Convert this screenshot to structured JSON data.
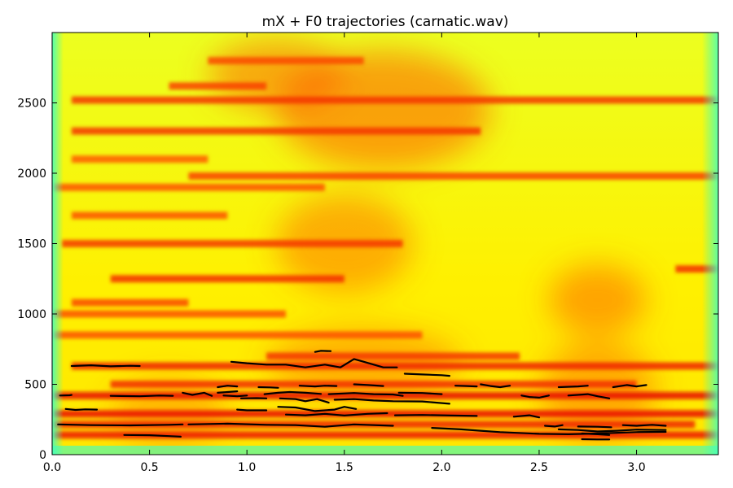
{
  "chart_data": {
    "type": "heatmap",
    "title": "mX + F0 trajectories (carnatic.wav)",
    "xlabel": "",
    "ylabel": "",
    "xlim": [
      0.0,
      3.42
    ],
    "ylim": [
      0,
      3000
    ],
    "x_ticks": [
      "0.0",
      "0.5",
      "1.0",
      "1.5",
      "2.0",
      "2.5",
      "3.0"
    ],
    "x_tick_values": [
      0.0,
      0.5,
      1.0,
      1.5,
      2.0,
      2.5,
      3.0
    ],
    "y_ticks": [
      "0",
      "500",
      "1000",
      "1500",
      "2000",
      "2500"
    ],
    "y_tick_values": [
      0,
      500,
      1000,
      1500,
      2000,
      2500
    ],
    "colormap": "jet",
    "colors": {
      "background": "#ffff00",
      "low": "#40ffbf",
      "mid": "#ffd000",
      "high": "#ff5a00",
      "peak": "#e60000",
      "trajectory": "#000000"
    },
    "harmonic_bands": [
      {
        "y": 140,
        "x": [
          0.0,
          3.42
        ],
        "level": 0.85
      },
      {
        "y": 215,
        "x": [
          0.0,
          3.3
        ],
        "level": 0.8
      },
      {
        "y": 290,
        "x": [
          0.0,
          3.42
        ],
        "level": 0.9
      },
      {
        "y": 420,
        "x": [
          0.0,
          3.42
        ],
        "level": 0.95
      },
      {
        "y": 500,
        "x": [
          0.3,
          3.0
        ],
        "level": 0.75
      },
      {
        "y": 630,
        "x": [
          0.1,
          3.42
        ],
        "level": 0.8
      },
      {
        "y": 700,
        "x": [
          1.1,
          2.4
        ],
        "level": 0.7
      },
      {
        "y": 850,
        "x": [
          0.0,
          1.9
        ],
        "level": 0.55
      },
      {
        "y": 1000,
        "x": [
          0.0,
          1.2
        ],
        "level": 0.55
      },
      {
        "y": 1080,
        "x": [
          0.1,
          0.7
        ],
        "level": 0.6
      },
      {
        "y": 1250,
        "x": [
          0.3,
          1.5
        ],
        "level": 0.75
      },
      {
        "y": 1320,
        "x": [
          3.2,
          3.42
        ],
        "level": 0.75
      },
      {
        "y": 1500,
        "x": [
          0.05,
          1.8
        ],
        "level": 0.7
      },
      {
        "y": 1700,
        "x": [
          0.1,
          0.9
        ],
        "level": 0.55
      },
      {
        "y": 1900,
        "x": [
          0.0,
          1.4
        ],
        "level": 0.55
      },
      {
        "y": 1980,
        "x": [
          0.7,
          3.42
        ],
        "level": 0.65
      },
      {
        "y": 2100,
        "x": [
          0.1,
          0.8
        ],
        "level": 0.5
      },
      {
        "y": 2300,
        "x": [
          0.1,
          2.2
        ],
        "level": 0.7
      },
      {
        "y": 2520,
        "x": [
          0.1,
          3.42
        ],
        "level": 0.7
      },
      {
        "y": 2620,
        "x": [
          0.6,
          1.1
        ],
        "level": 0.65
      },
      {
        "y": 2800,
        "x": [
          0.8,
          1.6
        ],
        "level": 0.6
      }
    ],
    "energy_regions": [
      {
        "x": 1.7,
        "y": 2450,
        "rx": 0.55,
        "ry": 420,
        "level": 0.55
      },
      {
        "x": 1.15,
        "y": 2700,
        "rx": 0.35,
        "ry": 250,
        "level": 0.5
      },
      {
        "x": 1.5,
        "y": 1500,
        "rx": 0.35,
        "ry": 350,
        "level": 0.45
      },
      {
        "x": 2.8,
        "y": 1100,
        "rx": 0.25,
        "ry": 250,
        "level": 0.5
      },
      {
        "x": 1.6,
        "y": 650,
        "rx": 0.5,
        "ry": 250,
        "level": 0.4
      },
      {
        "x": 2.8,
        "y": 450,
        "rx": 0.3,
        "ry": 350,
        "level": 0.45
      },
      {
        "x": 0.6,
        "y": 300,
        "rx": 0.3,
        "ry": 250,
        "level": 0.35
      }
    ],
    "series": [
      {
        "points": [
          [
            0.1,
            630
          ],
          [
            0.2,
            635
          ],
          [
            0.3,
            628
          ],
          [
            0.4,
            632
          ],
          [
            0.45,
            630
          ]
        ]
      },
      {
        "points": [
          [
            0.04,
            420
          ],
          [
            0.09,
            422
          ],
          [
            0.1,
            424
          ]
        ]
      },
      {
        "points": [
          [
            0.07,
            325
          ],
          [
            0.12,
            318
          ],
          [
            0.17,
            322
          ],
          [
            0.23,
            320
          ]
        ]
      },
      {
        "points": [
          [
            0.03,
            215
          ],
          [
            0.2,
            210
          ],
          [
            0.4,
            208
          ],
          [
            0.6,
            212
          ],
          [
            0.67,
            215
          ]
        ]
      },
      {
        "points": [
          [
            0.37,
            140
          ],
          [
            0.5,
            138
          ],
          [
            0.6,
            132
          ],
          [
            0.66,
            128
          ]
        ]
      },
      {
        "points": [
          [
            0.3,
            418
          ],
          [
            0.45,
            415
          ],
          [
            0.55,
            420
          ],
          [
            0.62,
            418
          ]
        ]
      },
      {
        "points": [
          [
            0.67,
            440
          ],
          [
            0.72,
            425
          ],
          [
            0.78,
            440
          ],
          [
            0.82,
            418
          ]
        ]
      },
      {
        "points": [
          [
            0.85,
            480
          ],
          [
            0.9,
            490
          ],
          [
            0.95,
            485
          ]
        ]
      },
      {
        "points": [
          [
            0.85,
            440
          ],
          [
            0.9,
            445
          ],
          [
            0.95,
            450
          ]
        ]
      },
      {
        "points": [
          [
            0.88,
            420
          ],
          [
            0.95,
            415
          ],
          [
            1.0,
            420
          ]
        ]
      },
      {
        "points": [
          [
            0.97,
            400
          ],
          [
            1.05,
            402
          ],
          [
            1.1,
            400
          ]
        ]
      },
      {
        "points": [
          [
            0.95,
            320
          ],
          [
            1.0,
            315
          ],
          [
            1.1,
            315
          ]
        ]
      },
      {
        "points": [
          [
            0.7,
            215
          ],
          [
            0.9,
            220
          ],
          [
            1.1,
            212
          ],
          [
            1.25,
            210
          ],
          [
            1.4,
            198
          ],
          [
            1.55,
            215
          ],
          [
            1.75,
            205
          ]
        ]
      },
      {
        "points": [
          [
            0.92,
            660
          ],
          [
            1.0,
            650
          ],
          [
            1.1,
            640
          ],
          [
            1.2,
            640
          ],
          [
            1.3,
            620
          ],
          [
            1.4,
            640
          ],
          [
            1.48,
            620
          ],
          [
            1.55,
            680
          ],
          [
            1.6,
            660
          ],
          [
            1.7,
            620
          ],
          [
            1.77,
            620
          ]
        ]
      },
      {
        "points": [
          [
            1.35,
            730
          ],
          [
            1.38,
            738
          ],
          [
            1.43,
            736
          ]
        ]
      },
      {
        "points": [
          [
            1.06,
            480
          ],
          [
            1.12,
            478
          ],
          [
            1.16,
            475
          ]
        ]
      },
      {
        "points": [
          [
            1.09,
            430
          ],
          [
            1.16,
            440
          ],
          [
            1.22,
            445
          ],
          [
            1.3,
            440
          ],
          [
            1.38,
            432
          ]
        ]
      },
      {
        "points": [
          [
            1.17,
            400
          ],
          [
            1.25,
            395
          ],
          [
            1.3,
            380
          ],
          [
            1.36,
            395
          ],
          [
            1.42,
            370
          ]
        ]
      },
      {
        "points": [
          [
            1.16,
            340
          ],
          [
            1.25,
            335
          ],
          [
            1.35,
            310
          ],
          [
            1.45,
            320
          ],
          [
            1.5,
            340
          ],
          [
            1.56,
            325
          ]
        ]
      },
      {
        "points": [
          [
            1.2,
            285
          ],
          [
            1.3,
            280
          ],
          [
            1.4,
            290
          ],
          [
            1.5,
            278
          ],
          [
            1.62,
            290
          ],
          [
            1.72,
            295
          ]
        ]
      },
      {
        "points": [
          [
            1.27,
            490
          ],
          [
            1.35,
            485
          ],
          [
            1.4,
            490
          ],
          [
            1.46,
            488
          ]
        ]
      },
      {
        "points": [
          [
            1.42,
            430
          ],
          [
            1.55,
            438
          ],
          [
            1.65,
            430
          ],
          [
            1.75,
            428
          ],
          [
            1.8,
            418
          ]
        ]
      },
      {
        "points": [
          [
            1.45,
            390
          ],
          [
            1.55,
            395
          ],
          [
            1.65,
            385
          ],
          [
            1.75,
            380
          ],
          [
            1.9,
            378
          ],
          [
            2.04,
            362
          ]
        ]
      },
      {
        "points": [
          [
            1.55,
            500
          ],
          [
            1.62,
            495
          ],
          [
            1.7,
            488
          ]
        ]
      },
      {
        "points": [
          [
            1.81,
            575
          ],
          [
            1.9,
            570
          ],
          [
            2.0,
            565
          ],
          [
            2.04,
            560
          ]
        ]
      },
      {
        "points": [
          [
            1.76,
            280
          ],
          [
            1.9,
            282
          ],
          [
            2.05,
            278
          ],
          [
            2.18,
            275
          ]
        ]
      },
      {
        "points": [
          [
            1.78,
            440
          ],
          [
            1.9,
            438
          ],
          [
            2.0,
            430
          ]
        ]
      },
      {
        "points": [
          [
            1.95,
            190
          ],
          [
            2.1,
            180
          ],
          [
            2.2,
            170
          ],
          [
            2.3,
            160
          ],
          [
            2.5,
            148
          ],
          [
            2.65,
            145
          ],
          [
            2.8,
            150
          ],
          [
            3.0,
            160
          ],
          [
            3.15,
            162
          ]
        ]
      },
      {
        "points": [
          [
            2.07,
            490
          ],
          [
            2.13,
            488
          ],
          [
            2.18,
            485
          ]
        ]
      },
      {
        "points": [
          [
            2.2,
            500
          ],
          [
            2.25,
            488
          ],
          [
            2.3,
            480
          ],
          [
            2.35,
            490
          ]
        ]
      },
      {
        "points": [
          [
            2.37,
            270
          ],
          [
            2.45,
            280
          ],
          [
            2.5,
            265
          ]
        ]
      },
      {
        "points": [
          [
            2.41,
            420
          ],
          [
            2.45,
            410
          ],
          [
            2.5,
            405
          ],
          [
            2.55,
            420
          ]
        ]
      },
      {
        "points": [
          [
            2.53,
            205
          ],
          [
            2.58,
            200
          ],
          [
            2.62,
            210
          ]
        ]
      },
      {
        "points": [
          [
            2.6,
            480
          ],
          [
            2.7,
            485
          ],
          [
            2.75,
            490
          ]
        ]
      },
      {
        "points": [
          [
            2.65,
            420
          ],
          [
            2.75,
            430
          ],
          [
            2.8,
            415
          ],
          [
            2.86,
            400
          ]
        ]
      },
      {
        "points": [
          [
            2.6,
            180
          ],
          [
            2.7,
            175
          ],
          [
            2.8,
            165
          ],
          [
            2.9,
            170
          ],
          [
            3.0,
            178
          ],
          [
            3.15,
            175
          ]
        ]
      },
      {
        "points": [
          [
            2.7,
            200
          ],
          [
            2.8,
            198
          ],
          [
            2.87,
            195
          ]
        ]
      },
      {
        "points": [
          [
            2.72,
            150
          ],
          [
            2.8,
            145
          ],
          [
            2.86,
            140
          ]
        ]
      },
      {
        "points": [
          [
            2.72,
            110
          ],
          [
            2.8,
            108
          ],
          [
            2.86,
            108
          ]
        ]
      },
      {
        "points": [
          [
            2.88,
            480
          ],
          [
            2.95,
            495
          ],
          [
            3.0,
            485
          ],
          [
            3.05,
            495
          ]
        ]
      },
      {
        "points": [
          [
            2.93,
            210
          ],
          [
            3.0,
            205
          ],
          [
            3.08,
            212
          ],
          [
            3.15,
            205
          ]
        ]
      }
    ]
  }
}
